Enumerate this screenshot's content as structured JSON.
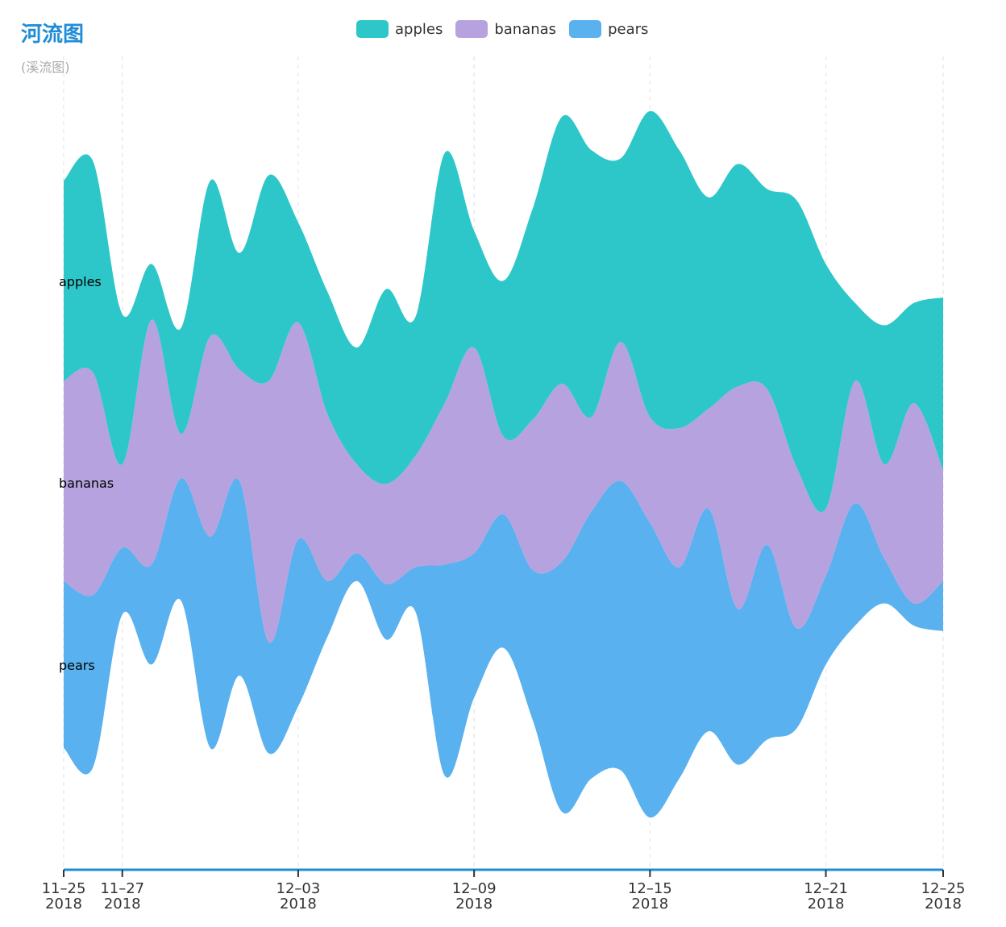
{
  "page": {
    "title": "河流图",
    "subtitle": "(溪流图)"
  },
  "colors": {
    "apples": "#2ec7c9",
    "bananas": "#b6a2de",
    "pears": "#5ab1ef",
    "axis": "#1f8dd6",
    "grid": "#e6e6e6"
  },
  "chart_data": {
    "type": "themeRiver",
    "title": "河流图",
    "subtitle": "(溪流图)",
    "legend": [
      "apples",
      "bananas",
      "pears"
    ],
    "legend_position": "top-center",
    "x_start": "2018-11-25",
    "x_end": "2018-12-25",
    "x_tick_labels": [
      {
        "date": "2018-11-25",
        "line1": "11–25",
        "line2": "2018"
      },
      {
        "date": "2018-11-27",
        "line1": "11–27",
        "line2": "2018"
      },
      {
        "date": "2018-12-03",
        "line1": "12–03",
        "line2": "2018"
      },
      {
        "date": "2018-12-09",
        "line1": "12–09",
        "line2": "2018"
      },
      {
        "date": "2018-12-15",
        "line1": "12–15",
        "line2": "2018"
      },
      {
        "date": "2018-12-21",
        "line1": "12–21",
        "line2": "2018"
      },
      {
        "date": "2018-12-25",
        "line1": "12–25",
        "line2": "2018"
      }
    ],
    "grid_lines": "vertical dashed",
    "dates": [
      "2018-11-25",
      "2018-11-26",
      "2018-11-27",
      "2018-11-28",
      "2018-11-29",
      "2018-11-30",
      "2018-12-01",
      "2018-12-02",
      "2018-12-03",
      "2018-12-04",
      "2018-12-05",
      "2018-12-06",
      "2018-12-07",
      "2018-12-08",
      "2018-12-09",
      "2018-12-10",
      "2018-12-11",
      "2018-12-12",
      "2018-12-13",
      "2018-12-14",
      "2018-12-15",
      "2018-12-16",
      "2018-12-17",
      "2018-12-18",
      "2018-12-19",
      "2018-12-20",
      "2018-12-21",
      "2018-12-22",
      "2018-12-23",
      "2018-12-24",
      "2018-12-25"
    ],
    "series": [
      {
        "name": "pears",
        "values": [
          30,
          31,
          12,
          18,
          22,
          38,
          35,
          20,
          30,
          10,
          5,
          10,
          8,
          38,
          26,
          24,
          27,
          45,
          48,
          52,
          53,
          38,
          40,
          28,
          35,
          18,
          16,
          22,
          8,
          4,
          9
        ]
      },
      {
        "name": "bananas",
        "values": [
          36,
          40,
          15,
          44,
          8,
          36,
          20,
          47,
          39,
          30,
          16,
          18,
          20,
          29,
          37,
          14,
          27,
          32,
          17,
          25,
          19,
          25,
          18,
          40,
          28,
          29,
          12,
          22,
          17,
          36,
          20
        ]
      },
      {
        "name": "apples",
        "values": [
          36,
          38,
          27,
          10,
          19,
          28,
          21,
          37,
          18,
          22,
          21,
          35,
          25,
          45,
          21,
          28,
          38,
          48,
          48,
          33,
          55,
          50,
          38,
          40,
          36,
          48,
          44,
          14,
          25,
          18,
          31
        ]
      }
    ],
    "series_labels": [
      "apples",
      "bananas",
      "pears"
    ]
  }
}
